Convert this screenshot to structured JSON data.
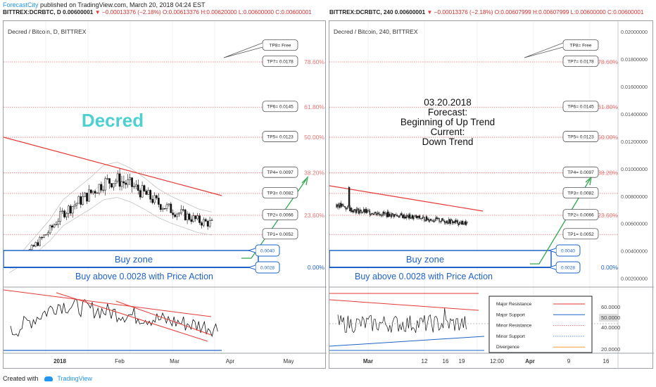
{
  "header": {
    "brand": "ForecastCity",
    "published": "published on TradingView.com, March 20, 2018 04:24 EST"
  },
  "footer": {
    "created": "Created with",
    "brand": "TradingView"
  },
  "left": {
    "symbol": {
      "pre": "BITTREX:DCRBTC, D  0.00600001",
      "arrow": "▼",
      "change": "−0.00013376 (−2.18%)",
      "ohlc": "O:0.00613376 H:0.00620000 L:0.00600000 C:0.00600001"
    },
    "title": "Decred / Bitcoin, D, BITTREX",
    "coin": "Decred",
    "buy_zone": "Buy zone",
    "buy_text": "Buy above 0.0028 with Price Action",
    "xticks": [
      "2018",
      "Feb",
      "Mar",
      "Apr",
      "May"
    ]
  },
  "right": {
    "symbol": {
      "pre": "BITTREX:DCRBTC, 240  0.00600001",
      "arrow": "▼",
      "change": "−0.00013376 (−2.18%)",
      "ohlc": "O:0.00607999 H:0.00607999 L:0.00600000 C:0.00600001"
    },
    "title": "Decred / Bitcoin, 240, BITTREX",
    "forecast": [
      "03.20.2018",
      "Forecast:",
      "Beginning of Up Trend",
      "Current:",
      "Down Trend"
    ],
    "buy_zone": "Buy zone",
    "buy_text": "Buy above 0.0028 with Price Action",
    "xticks": [
      "Mar",
      "12",
      "16",
      "19",
      "12:00",
      "Apr",
      "9",
      "16"
    ],
    "yaxis": [
      "0.02000000",
      "0.01800000",
      "0.01600000",
      "0.01400000",
      "0.01200000",
      "0.01000000",
      "0.00800000",
      "0.00600000",
      "0.00400000",
      "0.00200000"
    ],
    "osc_axis": [
      "60.0000",
      "50.0000",
      "40.0000",
      "20.0000"
    ],
    "legend": [
      {
        "label": "Major Resistance",
        "color": "#e53935",
        "style": "solid"
      },
      {
        "label": "Major Support",
        "color": "#1e63c7",
        "style": "solid"
      },
      {
        "label": "Minor Resistance",
        "color": "#e57373",
        "style": "dotted"
      },
      {
        "label": "Minor Support",
        "color": "#5c8fd6",
        "style": "dotted"
      },
      {
        "label": "Divergence",
        "color": "#f0a030",
        "style": "solid"
      }
    ]
  },
  "targets": [
    {
      "label": "TP8= Free",
      "value": null
    },
    {
      "label": "TP7= 0.0178",
      "value": 0.0178
    },
    {
      "label": "TP6= 0.0145",
      "value": 0.0145
    },
    {
      "label": "TP5= 0.0123",
      "value": 0.0123
    },
    {
      "label": "TP4= 0.0097",
      "value": 0.0097
    },
    {
      "label": "TP3= 0.0082",
      "value": 0.0082
    },
    {
      "label": "TP2= 0.0066",
      "value": 0.0066
    },
    {
      "label": "TP1= 0.0052",
      "value": 0.0052
    }
  ],
  "buy_levels": [
    "0.0040",
    "0.0028"
  ],
  "fib": [
    {
      "label": "78.60%",
      "value": 0.0178
    },
    {
      "label": "61.80%",
      "value": 0.0145
    },
    {
      "label": "50.00%",
      "value": 0.0123
    },
    {
      "label": "38.20%",
      "value": 0.0097
    },
    {
      "label": "23.60%",
      "value": 0.0066
    },
    {
      "label": "0.00%",
      "value": 0.0028
    }
  ],
  "chart_data": [
    {
      "type": "candlestick",
      "title": "Decred / Bitcoin, D, BITTREX",
      "x_ticks": [
        "2018",
        "Feb",
        "Mar",
        "Apr",
        "May"
      ],
      "y_range": [
        0.0022,
        0.0208
      ],
      "close_approx": [
        0.0028,
        0.0035,
        0.0045,
        0.0055,
        0.0068,
        0.0075,
        0.0082,
        0.009,
        0.0092,
        0.0088,
        0.0082,
        0.0075,
        0.007,
        0.0066,
        0.0062,
        0.006
      ],
      "resistance_line": {
        "from": 0.0128,
        "to": 0.0076
      },
      "targets": [
        0.0178,
        0.0145,
        0.0123,
        0.0097,
        0.0082,
        0.0066,
        0.0052
      ],
      "buy_zone": [
        0.0028,
        0.004
      ]
    },
    {
      "type": "candlestick",
      "title": "Decred / Bitcoin, 240, BITTREX",
      "x_ticks": [
        "Mar",
        "12",
        "16",
        "19",
        "12:00",
        "Apr",
        "9",
        "16"
      ],
      "y_range": [
        0.002,
        0.021
      ],
      "y_ticks": [
        0.02,
        0.018,
        0.016,
        0.014,
        0.012,
        0.01,
        0.008,
        0.006,
        0.004,
        0.002
      ],
      "close_approx": [
        0.0074,
        0.0071,
        0.0069,
        0.0068,
        0.0067,
        0.0066,
        0.0065,
        0.0064,
        0.0063,
        0.0062,
        0.0061,
        0.006
      ],
      "last": 0.00600001,
      "resistance_line": {
        "from": 0.0085,
        "to": 0.0071
      },
      "targets": [
        0.0178,
        0.0145,
        0.0123,
        0.0097,
        0.0082,
        0.0066,
        0.0052
      ],
      "buy_zone": [
        0.0028,
        0.004
      ]
    },
    {
      "type": "line",
      "title": "",
      "y_ticks": [
        60,
        50,
        40,
        20
      ],
      "last": 50
    }
  ],
  "colors": {
    "target_line": "#e57373",
    "fib_text": "#e53935",
    "buy_zone": "#1e63c7",
    "forecast_arrow": "#2fa84f",
    "coin_title": "#4dd0cf",
    "resistance": "#e53935"
  }
}
